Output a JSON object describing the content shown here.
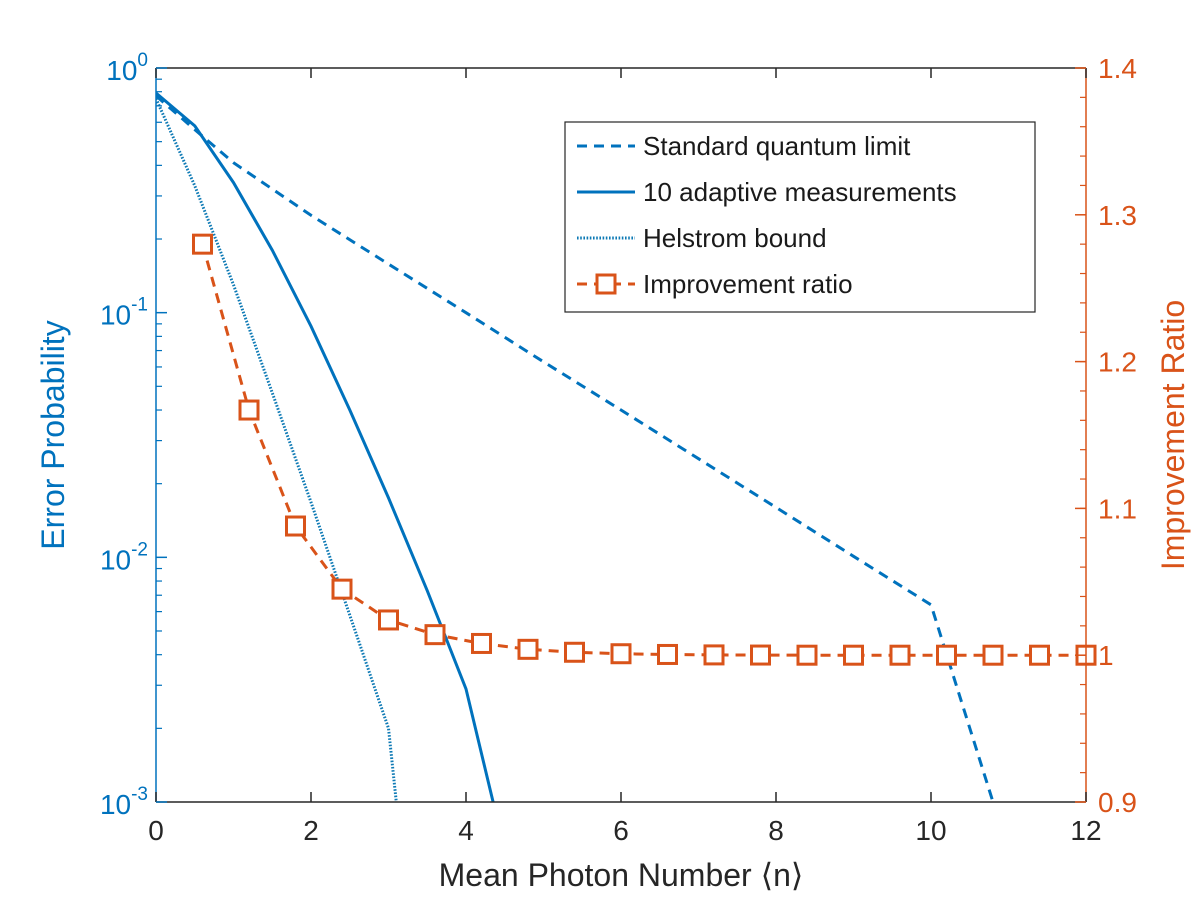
{
  "colors": {
    "left_axis": "#0072BD",
    "right_axis": "#D95319",
    "frame": "#262626",
    "helstrom": "#0E7AB5"
  },
  "chart_data": {
    "type": "line",
    "xlabel": "Mean Photon Number ⟨n⟩",
    "ylabel_left": "Error Probability",
    "ylabel_right": "Improvement Ratio",
    "xlim": [
      0,
      12
    ],
    "ylim_left": [
      0.001,
      1
    ],
    "ylim_right": [
      0.9,
      1.4
    ],
    "y_left_scale": "log",
    "grid": false,
    "legend_position": "top-right",
    "x_ticks": [
      "0",
      "2",
      "4",
      "6",
      "8",
      "10",
      "12"
    ],
    "y_left_ticks": [
      {
        "base": "10",
        "exp": "0"
      },
      {
        "base": "10",
        "exp": "-1"
      },
      {
        "base": "10",
        "exp": "-2"
      },
      {
        "base": "10",
        "exp": "-3"
      }
    ],
    "y_right_ticks": [
      "1.4",
      "1.3",
      "1.2",
      "1.1",
      "1",
      "0.9"
    ],
    "series": [
      {
        "name": "Standard quantum limit",
        "axis": "left",
        "style": "dashed",
        "x": [
          0,
          0.5,
          1,
          2,
          3,
          4,
          5,
          6,
          7,
          8,
          9,
          10,
          10.8
        ],
        "y": [
          0.77,
          0.56,
          0.41,
          0.25,
          0.158,
          0.1,
          0.063,
          0.04,
          0.0253,
          0.016,
          0.0101,
          0.0064,
          0.001
        ]
      },
      {
        "name": "10 adaptive measurements",
        "axis": "left",
        "style": "solid",
        "x": [
          0,
          0.5,
          1,
          1.5,
          2,
          2.5,
          3,
          3.5,
          4,
          4.35
        ],
        "y": [
          0.79,
          0.58,
          0.34,
          0.18,
          0.088,
          0.04,
          0.0175,
          0.0073,
          0.0029,
          0.001
        ]
      },
      {
        "name": "Helstrom bound",
        "axis": "left",
        "style": "dotted",
        "x": [
          0,
          0.5,
          1,
          1.5,
          2,
          2.5,
          3,
          3.1
        ],
        "y": [
          0.75,
          0.33,
          0.13,
          0.047,
          0.0168,
          0.0058,
          0.002,
          0.001
        ]
      },
      {
        "name": "Improvement ratio",
        "axis": "right",
        "style": "dashed-square",
        "x": [
          0.6,
          1.2,
          1.8,
          2.4,
          3.0,
          3.6,
          4.2,
          4.8,
          5.4,
          6.0,
          6.6,
          7.2,
          7.8,
          8.4,
          9.0,
          9.6,
          10.2,
          10.8,
          11.4,
          12.0
        ],
        "y": [
          1.28,
          1.167,
          1.088,
          1.045,
          1.024,
          1.014,
          1.008,
          1.004,
          1.002,
          1.001,
          1.0005,
          1.0002,
          1.0001,
          1.0,
          1.0,
          1.0,
          1.0,
          1.0,
          1.0,
          1.0
        ]
      }
    ]
  }
}
